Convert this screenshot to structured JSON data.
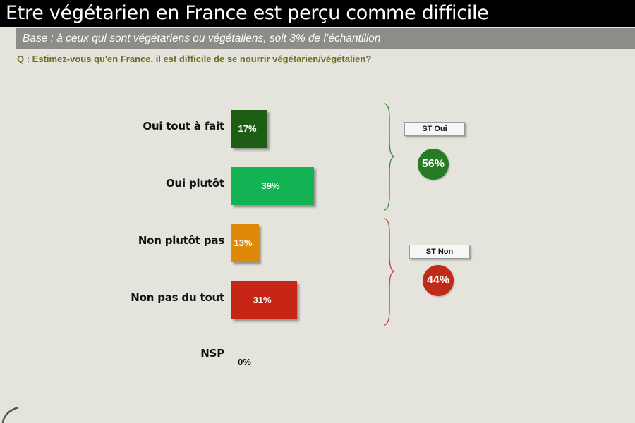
{
  "header": {
    "title": "Etre végétarien en France est perçu comme difficile",
    "base": "Base : à ceux qui sont végétariens ou végétaliens, soit 3% de l’échantillon",
    "question": "Q : Estimez-vous qu'en France, il est difficile de se nourrir végétarien/végétalien?"
  },
  "chart_data": {
    "type": "bar",
    "orientation": "horizontal",
    "categories": [
      "Oui tout à fait",
      "Oui plutôt",
      "Non plutôt pas",
      "Non pas du tout",
      "NSP"
    ],
    "values": [
      17,
      39,
      13,
      31,
      0
    ],
    "value_labels": [
      "17%",
      "39%",
      "13%",
      "31%",
      "0%"
    ],
    "colors": [
      "#1d5e14",
      "#13b253",
      "#de8a08",
      "#c72516",
      "#000000"
    ],
    "xlim": [
      0,
      100
    ],
    "grid": false
  },
  "summary": {
    "oui": {
      "label": "ST Oui",
      "value": "56%",
      "color": "#277b25",
      "brace_color": "#2f8a2a"
    },
    "non": {
      "label": "ST Non",
      "value": "44%",
      "color": "#c12a18",
      "brace_color": "#c4382a"
    }
  }
}
